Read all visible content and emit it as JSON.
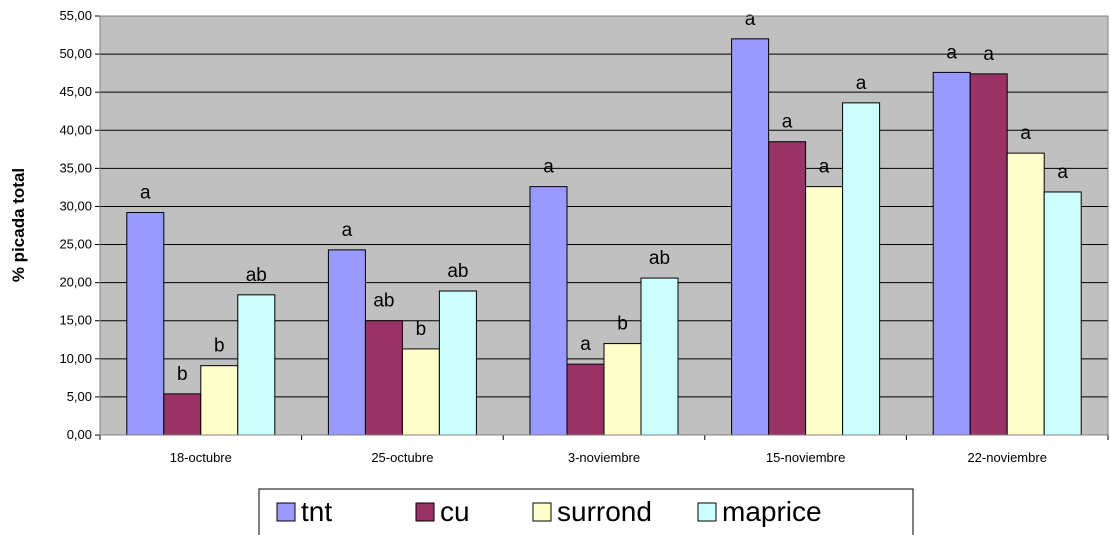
{
  "chart_data": {
    "type": "bar",
    "title": "",
    "xlabel": "",
    "ylabel": "% picada total",
    "ylim": [
      0,
      55
    ],
    "yticks": [
      "0,00",
      "5,00",
      "10,00",
      "15,00",
      "20,00",
      "25,00",
      "30,00",
      "35,00",
      "40,00",
      "45,00",
      "50,00",
      "55,00"
    ],
    "categories": [
      "18-octubre",
      "25-octubre",
      "3-noviembre",
      "15-noviembre",
      "22-noviembre"
    ],
    "series": [
      {
        "name": "tnt",
        "color": "#9999ff",
        "values": [
          29.2,
          24.3,
          32.6,
          52.0,
          47.6
        ],
        "labels": [
          "a",
          "a",
          "a",
          "a",
          "a"
        ]
      },
      {
        "name": "cu",
        "color": "#993366",
        "values": [
          5.4,
          15.0,
          9.3,
          38.5,
          47.4
        ],
        "labels": [
          "b",
          "ab",
          "a",
          "a",
          "a"
        ]
      },
      {
        "name": "surrond",
        "color": "#ffffcc",
        "values": [
          9.1,
          11.3,
          12.0,
          32.6,
          37.0
        ],
        "labels": [
          "b",
          "b",
          "b",
          "a",
          "a"
        ]
      },
      {
        "name": "maprice",
        "color": "#ccffff",
        "values": [
          18.4,
          18.9,
          20.6,
          43.6,
          31.9
        ],
        "labels": [
          "ab",
          "ab",
          "ab",
          "a",
          "a"
        ]
      }
    ],
    "plot_background": "#c0c0c0",
    "grid": true,
    "legend_position": "bottom"
  }
}
